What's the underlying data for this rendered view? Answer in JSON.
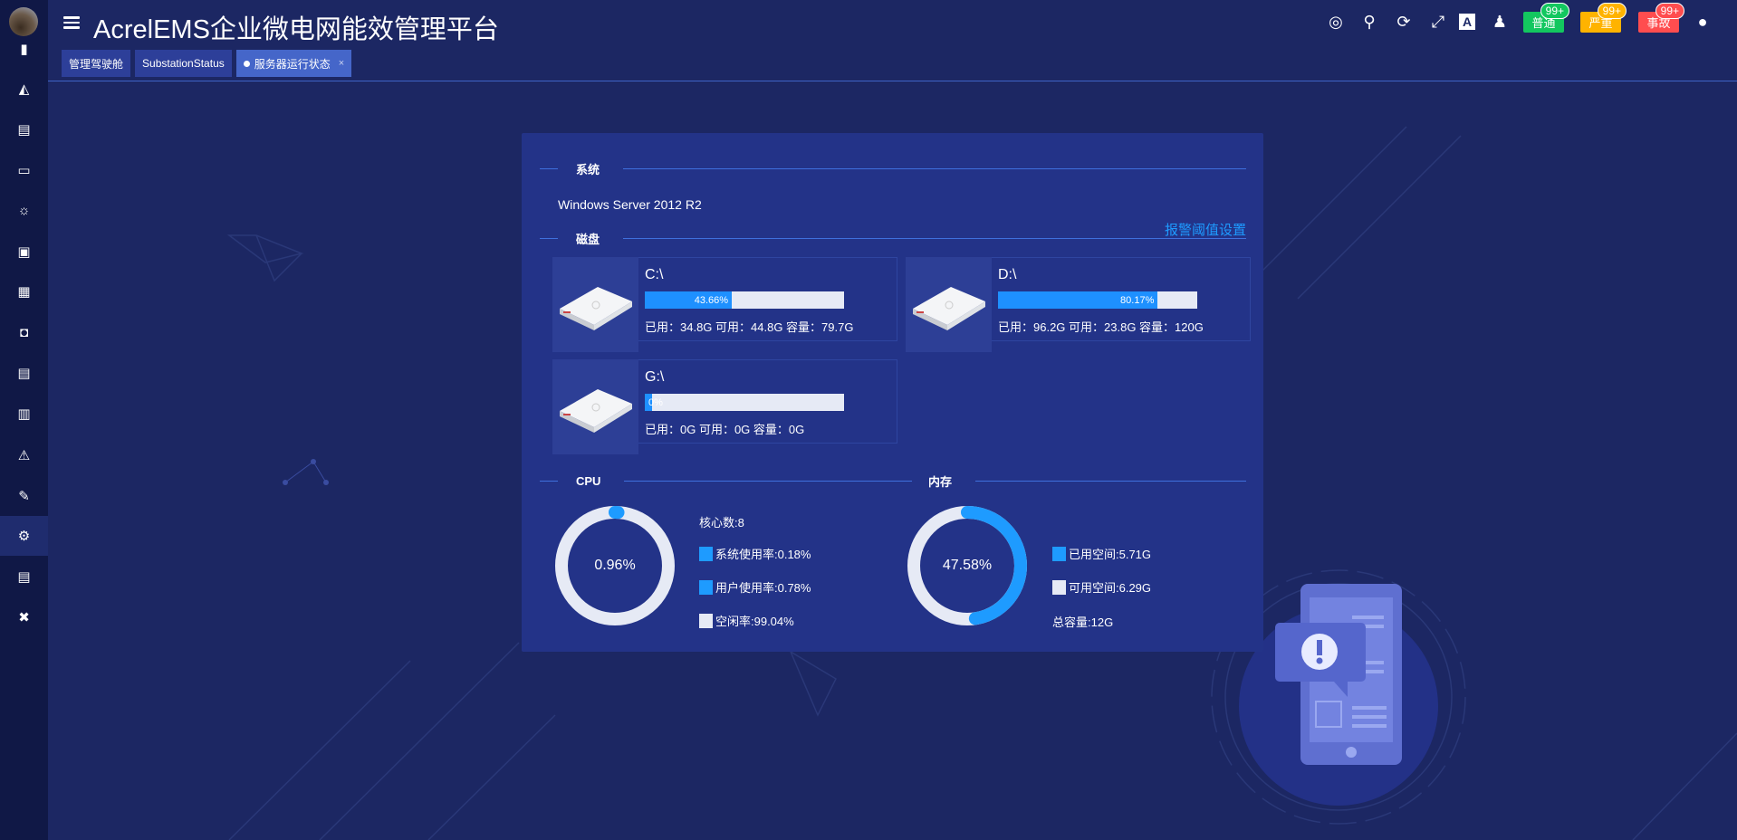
{
  "app": {
    "title": "AcrelEMS企业微电网能效管理平台"
  },
  "colors": {
    "accent": "#1e90ff",
    "normal": "#13c75f",
    "serious": "#ffb300",
    "accident": "#ff4d4f",
    "panel": "#233388",
    "sidebar": "#101846"
  },
  "sidebar": {
    "items": [
      {
        "icon": "bar-chart-icon"
      },
      {
        "icon": "area-chart-icon"
      },
      {
        "icon": "report-icon"
      },
      {
        "icon": "monitor-icon"
      },
      {
        "icon": "lightbulb-icon"
      },
      {
        "icon": "meter-icon"
      },
      {
        "icon": "solar-panel-icon"
      },
      {
        "icon": "camera-icon"
      },
      {
        "icon": "device-icon"
      },
      {
        "icon": "cabinet-icon"
      },
      {
        "icon": "alarm-light-icon"
      },
      {
        "icon": "edit-icon"
      },
      {
        "icon": "server-settings-icon",
        "active": true
      },
      {
        "icon": "document-icon"
      },
      {
        "icon": "tools-icon"
      }
    ]
  },
  "header": {
    "icons": [
      "help-lifebuoy-icon",
      "search-icon",
      "refresh-icon",
      "fullscreen-icon",
      "translate-icon",
      "theme-shirt-icon",
      "user-icon"
    ],
    "badges": [
      {
        "label": "普通",
        "count": "99+",
        "color": "#13c75f"
      },
      {
        "label": "严重",
        "count": "99+",
        "color": "#ffb300"
      },
      {
        "label": "事故",
        "count": "99+",
        "color": "#ff4d4f"
      }
    ]
  },
  "tabs": [
    {
      "label": "管理驾驶舱"
    },
    {
      "label": "SubstationStatus"
    },
    {
      "label": "服务器运行状态",
      "active": true,
      "close": "×"
    }
  ],
  "system": {
    "section": "系统",
    "os": "Windows Server 2012 R2"
  },
  "disk": {
    "section": "磁盘",
    "alarm_link": "报警阈值设置",
    "drives": [
      {
        "name": "C:\\",
        "percent": 43.66,
        "percent_label": "43.66%",
        "stats": "已用：34.8G 可用：44.8G 容量：79.7G"
      },
      {
        "name": "D:\\",
        "percent": 80.17,
        "percent_label": "80.17%",
        "stats": "已用：96.2G 可用：23.8G 容量：120G"
      },
      {
        "name": "G:\\",
        "percent": 0,
        "percent_label": "0%",
        "stats": "已用：0G 可用：0G 容量：0G"
      }
    ]
  },
  "cpu": {
    "section": "CPU",
    "usage": 0.96,
    "usage_label": "0.96%",
    "cores": "核心数:8",
    "legend": [
      {
        "label": "系统使用率:0.18%",
        "color": "#1e9bff"
      },
      {
        "label": "用户使用率:0.78%",
        "color": "#1e9bff"
      },
      {
        "label": "空闲率:99.04%",
        "color": "#e6eaf5"
      }
    ]
  },
  "memory": {
    "section": "内存",
    "usage": 47.58,
    "usage_label": "47.58%",
    "legend": [
      {
        "label": "已用空间:5.71G",
        "color": "#1e9bff"
      },
      {
        "label": "可用空间:6.29G",
        "color": "#e6eaf5"
      }
    ],
    "total": "总容量:12G"
  }
}
